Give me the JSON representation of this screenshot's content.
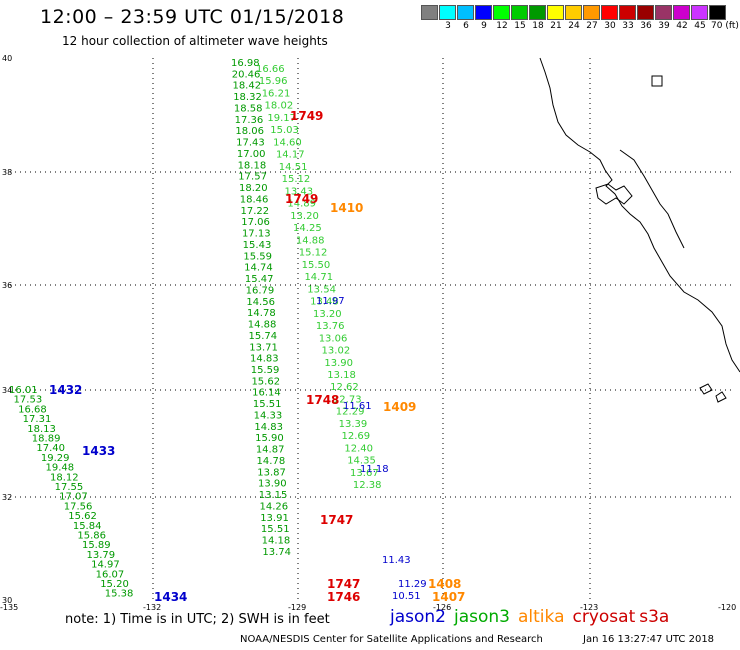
{
  "title": "12:00 – 23:59 UTC 01/15/2018",
  "subtitle": "12 hour collection of altimeter wave heights",
  "colorbar": {
    "colors": [
      "#808080",
      "#00ffff",
      "#00bfff",
      "#0000ff",
      "#00ff00",
      "#00cc00",
      "#009900",
      "#ffff00",
      "#ffcc00",
      "#ff9900",
      "#ff0000",
      "#cc0000",
      "#990000",
      "#993366",
      "#cc00cc",
      "#cc33ff",
      "#000000"
    ],
    "labels": [
      "",
      "3",
      "6",
      "9",
      "12",
      "15",
      "18",
      "21",
      "24",
      "27",
      "30",
      "33",
      "36",
      "39",
      "42",
      "45",
      "70 (ft)"
    ]
  },
  "map": {
    "lat_labels": [
      "40",
      "38",
      "36",
      "34",
      "32",
      "30"
    ],
    "lon_labels": [
      "-135",
      "-132",
      "-129",
      "-126",
      "-123",
      "-120"
    ],
    "tracks": [
      {
        "name": "jason3 track (north)",
        "color": "#009900",
        "values": [
          "16.98",
          "20.46",
          "18.42",
          "18.32",
          "18.58",
          "17.36",
          "18.06",
          "17.43",
          "17.00",
          "18.18",
          "17.57",
          "18.20",
          "18.46",
          "17.22",
          "17.06",
          "17.13",
          "15.43",
          "15.59",
          "14.74",
          "15.47",
          "16.79",
          "14.56",
          "14.78",
          "14.88",
          "15.74",
          "13.71",
          "14.83",
          "15.59",
          "15.62",
          "16.14",
          "15.51",
          "14.33",
          "14.83",
          "15.90",
          "14.87",
          "14.78",
          "13.87",
          "13.90",
          "13.15",
          "14.26",
          "13.91",
          "15.51",
          "14.18",
          "13.74"
        ]
      },
      {
        "name": "jason3 track (north, east)",
        "color": "#33cc33",
        "values": [
          "16.66",
          "15.96",
          "16.21",
          "18.02",
          "19.17",
          "15.03",
          "14.60",
          "14.17",
          "14.51",
          "15.12",
          "13.43",
          "14.89",
          "13.20",
          "14.25",
          "14.88",
          "15.12",
          "15.50",
          "14.71",
          "13.54",
          "13.48",
          "13.20",
          "13.76",
          "13.06",
          "13.02",
          "13.90",
          "13.18",
          "12.62",
          "12.73",
          "12.29",
          "13.39",
          "12.69",
          "12.40",
          "14.35",
          "13.67",
          "12.38"
        ]
      },
      {
        "name": "jason3 track (southwest)",
        "color": "#009900",
        "values": [
          "16.01",
          "17.53",
          "16.68",
          "17.31",
          "18.13",
          "18.89",
          "17.40",
          "19.29",
          "19.48",
          "18.12",
          "17.55",
          "17.07",
          "17.56",
          "15.62",
          "15.84",
          "15.86",
          "15.89",
          "13.79",
          "14.97",
          "16.07",
          "15.20",
          "15.38"
        ]
      },
      {
        "name": "jason2 track",
        "color": "#0000cc",
        "values": [
          "11.97",
          "11.61",
          "11.18",
          "11.43",
          "11.29",
          "10.51"
        ]
      }
    ],
    "time_labels": [
      {
        "text": "1749",
        "color": "#dd0000"
      },
      {
        "text": "1749",
        "color": "#dd0000"
      },
      {
        "text": "1410",
        "color": "#ff8800"
      },
      {
        "text": "1432",
        "color": "#0000cc"
      },
      {
        "text": "1433",
        "color": "#0000cc"
      },
      {
        "text": "1748",
        "color": "#dd0000"
      },
      {
        "text": "1409",
        "color": "#ff8800"
      },
      {
        "text": "1747",
        "color": "#dd0000"
      },
      {
        "text": "1747",
        "color": "#dd0000"
      },
      {
        "text": "1746",
        "color": "#dd0000"
      },
      {
        "text": "1408",
        "color": "#ff8800"
      },
      {
        "text": "1407",
        "color": "#ff8800"
      },
      {
        "text": "1434",
        "color": "#0000cc"
      }
    ]
  },
  "note": "note:  1) Time is in UTC;  2) SWH is in feet",
  "legend": [
    {
      "label": "jason2",
      "color": "#0000cc"
    },
    {
      "label": "jason3",
      "color": "#00aa00"
    },
    {
      "label": "altika",
      "color": "#ff8800"
    },
    {
      "label": "cryosat",
      "color": "#cc0000"
    },
    {
      "label": "s3a",
      "color": "#cc0000"
    }
  ],
  "credit": "NOAA/NESDIS Center for Satellite Applications and Research",
  "timestamp": "Jan 16 13:27:47 UTC 2018"
}
